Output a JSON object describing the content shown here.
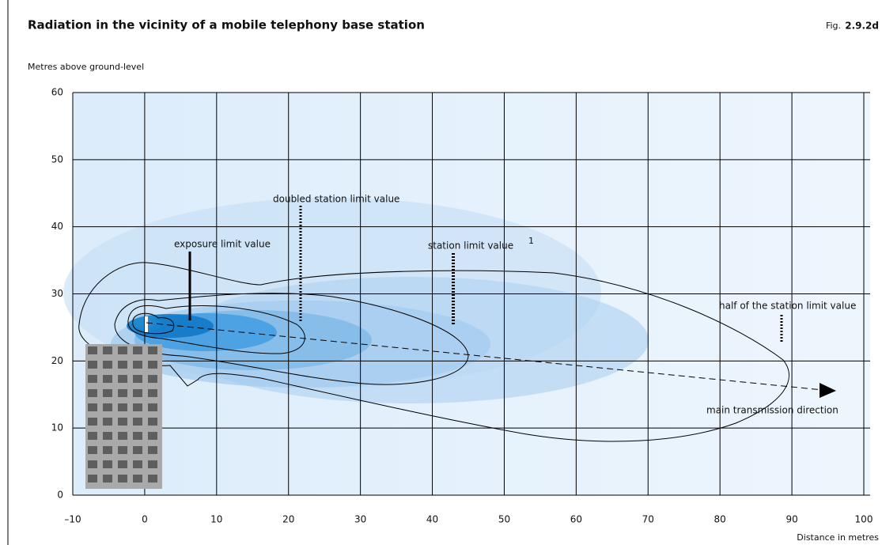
{
  "chart_data": {
    "type": "contour",
    "title": "Radiation in the vicinity of a mobile telephony base station",
    "figure_prefix": "Fig.",
    "figure_number": "2.9.2d",
    "y_label": "Metres above ground-level",
    "x_label": "Distance in metres",
    "xlim": [
      -10,
      100
    ],
    "xticks": [
      {
        "value": -10,
        "label": "–10"
      },
      0,
      10,
      20,
      30,
      40,
      50,
      60,
      70,
      80,
      90,
      100
    ],
    "ylim": [
      0,
      60
    ],
    "yticks": [
      0,
      10,
      20,
      30,
      40,
      50,
      60
    ],
    "grid": true,
    "annotations": {
      "exposure": "exposure limit value",
      "doubled": "doubled station limit value",
      "station": "station limit value",
      "station_note": "1",
      "half": "half of the station limit value",
      "direction": "main transmission direction"
    }
  }
}
